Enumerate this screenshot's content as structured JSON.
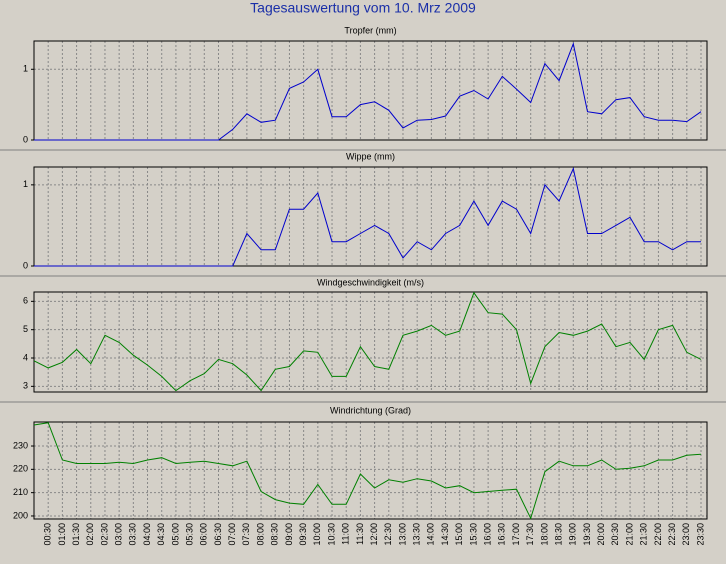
{
  "title": "Tagesauswertung vom 10. Mrz 2009",
  "chart_data": [
    {
      "type": "line",
      "title": "Tropfer (mm)",
      "color": "#0000cc",
      "grid": true,
      "ylim": [
        0,
        1.4
      ],
      "yticks": [
        0,
        1
      ],
      "values": [
        0,
        0,
        0,
        0,
        0,
        0,
        0,
        0,
        0,
        0,
        0,
        0,
        0,
        0,
        0.15,
        0.37,
        0.25,
        0.28,
        0.73,
        0.82,
        1.0,
        0.33,
        0.33,
        0.5,
        0.54,
        0.42,
        0.17,
        0.28,
        0.29,
        0.34,
        0.62,
        0.7,
        0.58,
        0.9,
        0.72,
        0.53,
        1.08,
        0.84,
        1.36,
        0.4,
        0.37,
        0.57,
        0.6,
        0.33,
        0.28,
        0.28,
        0.26,
        0.4
      ]
    },
    {
      "type": "line",
      "title": "Wippe (mm)",
      "color": "#0000cc",
      "grid": true,
      "ylim": [
        0,
        1.22
      ],
      "yticks": [
        0,
        1
      ],
      "values": [
        0,
        0,
        0,
        0,
        0,
        0,
        0,
        0,
        0,
        0,
        0,
        0,
        0,
        0,
        0,
        0.4,
        0.2,
        0.2,
        0.7,
        0.7,
        0.9,
        0.3,
        0.3,
        0.4,
        0.5,
        0.4,
        0.1,
        0.3,
        0.2,
        0.4,
        0.5,
        0.8,
        0.5,
        0.8,
        0.7,
        0.4,
        1.0,
        0.8,
        1.2,
        0.4,
        0.4,
        0.5,
        0.6,
        0.3,
        0.3,
        0.2,
        0.3,
        0.3
      ]
    },
    {
      "type": "line",
      "title": "Windgeschwindigkeit (m/s)",
      "color": "#008000",
      "grid": true,
      "ylim": [
        2.8,
        6.33
      ],
      "yticks": [
        3,
        4,
        5,
        6
      ],
      "values": [
        3.9,
        3.65,
        3.85,
        4.3,
        3.8,
        4.8,
        4.55,
        4.1,
        3.75,
        3.35,
        2.85,
        3.2,
        3.45,
        3.95,
        3.8,
        3.4,
        2.85,
        3.6,
        3.7,
        4.25,
        4.2,
        3.35,
        3.35,
        4.4,
        3.7,
        3.6,
        4.8,
        4.95,
        5.15,
        4.8,
        4.95,
        6.3,
        5.6,
        5.55,
        5.0,
        3.1,
        4.4,
        4.9,
        4.8,
        4.95,
        5.2,
        4.4,
        4.55,
        3.95,
        5.0,
        5.15,
        4.2,
        3.95
      ]
    },
    {
      "type": "line",
      "title": "Windrichtung (Grad)",
      "color": "#008000",
      "grid": true,
      "ylim": [
        198.7,
        240.3
      ],
      "yticks": [
        200,
        210,
        220,
        230
      ],
      "categories": [
        null,
        "00:30",
        "01:00",
        "01:30",
        "02:00",
        "02:30",
        "03:00",
        "03:30",
        "04:00",
        "04:30",
        "05:00",
        "05:30",
        "06:00",
        "06:30",
        "07:00",
        "07:30",
        "08:00",
        "08:30",
        "09:00",
        "09:30",
        "10:00",
        "10:30",
        "11:00",
        "11:30",
        "12:00",
        "12:30",
        "13:00",
        "13:30",
        "14:00",
        "14:30",
        "15:00",
        "15:30",
        "16:00",
        "16:30",
        "17:00",
        "17:30",
        "18:00",
        "18:30",
        "19:00",
        "19:30",
        "20:00",
        "20:30",
        "21:00",
        "21:30",
        "22:00",
        "22:30",
        "23:00",
        "23:30"
      ],
      "values": [
        239,
        240,
        224,
        222.5,
        222.5,
        222.5,
        223,
        222.5,
        224,
        225,
        222.5,
        223,
        223.5,
        222.5,
        221.5,
        223.5,
        210.5,
        207,
        205.5,
        205,
        213.5,
        205,
        205,
        218,
        212,
        215.5,
        214.5,
        216,
        215,
        212,
        213,
        210,
        210.5,
        211,
        211.5,
        199,
        219,
        223.5,
        221.5,
        221.5,
        224,
        220,
        220.5,
        221.5,
        224,
        224,
        226,
        226.5
      ]
    }
  ]
}
